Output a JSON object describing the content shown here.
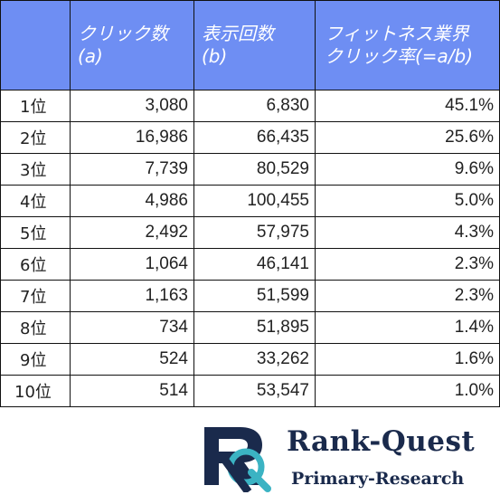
{
  "table": {
    "headers": {
      "rank": "",
      "clicks_line1": "クリック数",
      "clicks_line2": "(a)",
      "impressions_line1": "表示回数",
      "impressions_line2": "(b)",
      "rate_line1": "フィットネス業界",
      "rate_line2": "クリック率(=a/b)"
    },
    "rows": [
      {
        "rank": "1位",
        "clicks": "3,080",
        "impressions": "6,830",
        "rate": "45.1%"
      },
      {
        "rank": "2位",
        "clicks": "16,986",
        "impressions": "66,435",
        "rate": "25.6%"
      },
      {
        "rank": "3位",
        "clicks": "7,739",
        "impressions": "80,529",
        "rate": "9.6%"
      },
      {
        "rank": "4位",
        "clicks": "4,986",
        "impressions": "100,455",
        "rate": "5.0%"
      },
      {
        "rank": "5位",
        "clicks": "2,492",
        "impressions": "57,975",
        "rate": "4.3%"
      },
      {
        "rank": "6位",
        "clicks": "1,064",
        "impressions": "46,141",
        "rate": "2.3%"
      },
      {
        "rank": "7位",
        "clicks": "1,163",
        "impressions": "51,599",
        "rate": "2.3%"
      },
      {
        "rank": "8位",
        "clicks": "734",
        "impressions": "51,895",
        "rate": "1.4%"
      },
      {
        "rank": "9位",
        "clicks": "524",
        "impressions": "33,262",
        "rate": "1.6%"
      },
      {
        "rank": "10位",
        "clicks": "514",
        "impressions": "53,547",
        "rate": "1.0%"
      }
    ]
  },
  "logo": {
    "title": "Rank-Quest",
    "subtitle": "Primary-Research",
    "colors": {
      "navy": "#1a2a4c",
      "teal": "#3bb3c3"
    }
  },
  "colors": {
    "header_bg": "#6e8ef3",
    "header_text": "#ffffff",
    "border": "#111111"
  }
}
